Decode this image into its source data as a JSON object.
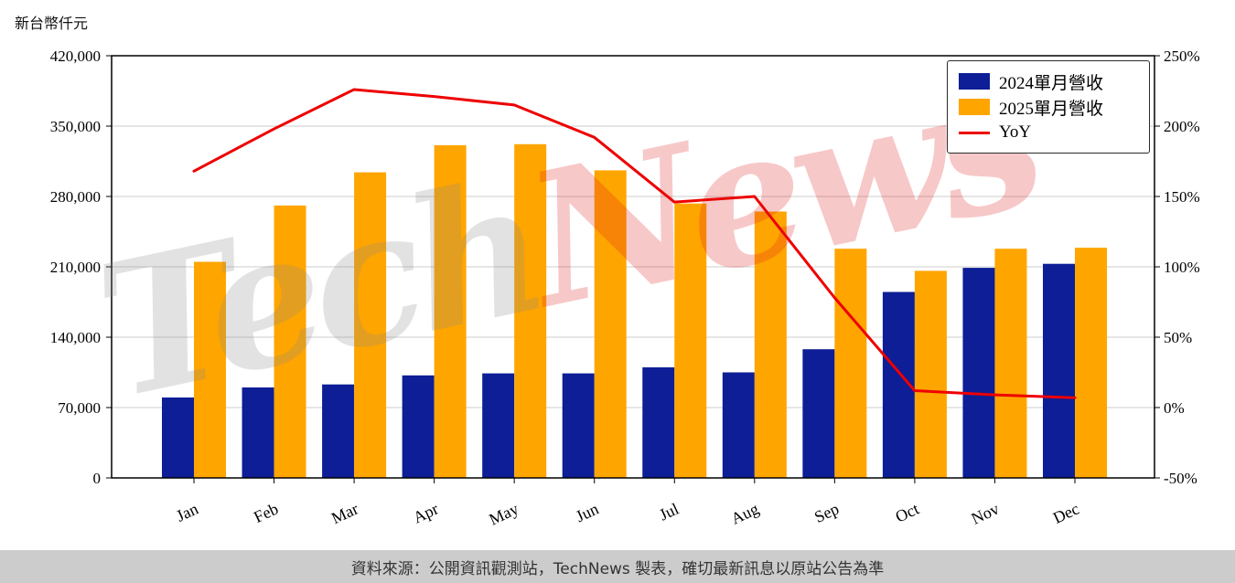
{
  "footer": {
    "source_text": "資料來源：公開資訊觀測站，TechNews 製表，確切最新訊息以原站公告為準"
  },
  "watermark": {
    "part1": "Tech",
    "part2": "News"
  },
  "chart_data": {
    "type": "bar",
    "title": "",
    "categories": [
      "Jan",
      "Feb",
      "Mar",
      "Apr",
      "May",
      "Jun",
      "Jul",
      "Aug",
      "Sep",
      "Oct",
      "Nov",
      "Dec"
    ],
    "series": [
      {
        "name": "2024單月營收",
        "type": "bar",
        "axis": "left",
        "color": "#0d1e96",
        "values": [
          80000,
          90000,
          93000,
          102000,
          104000,
          104000,
          110000,
          105000,
          128000,
          185000,
          209000,
          213000
        ]
      },
      {
        "name": "2025單月營收",
        "type": "bar",
        "axis": "left",
        "color": "#ffa500",
        "values": [
          215000,
          271000,
          304000,
          331000,
          332000,
          306000,
          273000,
          265000,
          228000,
          206000,
          228000,
          229000
        ]
      },
      {
        "name": "YoY",
        "type": "line",
        "axis": "right",
        "color": "#ee0000",
        "values": [
          168,
          198,
          226,
          221,
          215,
          192,
          146,
          150,
          78,
          12,
          9,
          7
        ]
      }
    ],
    "left_axis": {
      "title": "新台幣仟元",
      "min": 0,
      "max": 420000,
      "step": 70000,
      "tick_labels": [
        "0",
        "70,000",
        "140,000",
        "210,000",
        "280,000",
        "350,000",
        "420,000"
      ]
    },
    "right_axis": {
      "min": -50,
      "max": 250,
      "step": 50,
      "tick_labels": [
        "-50%",
        "0%",
        "50%",
        "100%",
        "150%",
        "200%",
        "250%"
      ]
    },
    "legend_position": "upper right",
    "grid": "horizontal"
  }
}
